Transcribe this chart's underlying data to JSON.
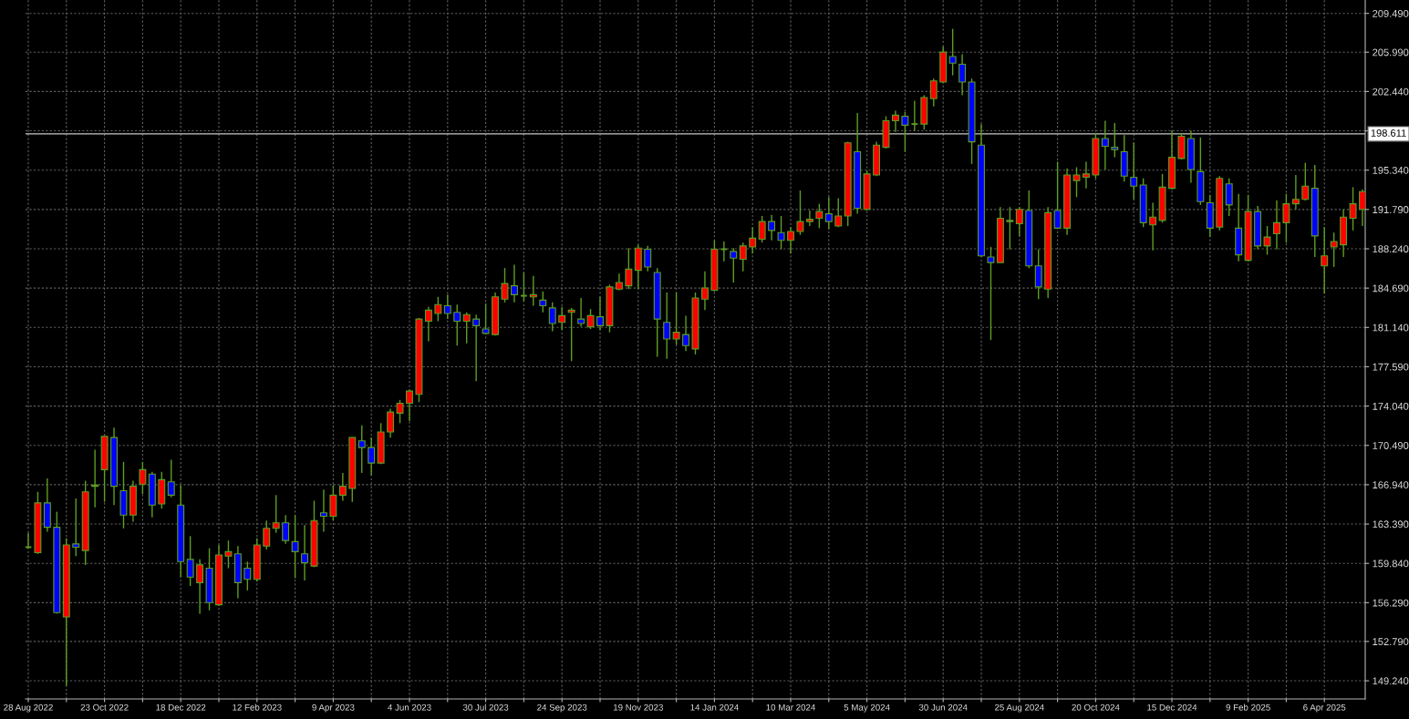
{
  "chart_data": {
    "type": "candlestick",
    "x": [
      "2022-08-28",
      "2022-09-04",
      "2022-09-11",
      "2022-09-18",
      "2022-09-25",
      "2022-10-02",
      "2022-10-09",
      "2022-10-16",
      "2022-10-23",
      "2022-10-30",
      "2022-11-06",
      "2022-11-13",
      "2022-11-20",
      "2022-11-27",
      "2022-12-04",
      "2022-12-11",
      "2022-12-18",
      "2022-12-25",
      "2023-01-01",
      "2023-01-08",
      "2023-01-15",
      "2023-01-22",
      "2023-01-29",
      "2023-02-05",
      "2023-02-12",
      "2023-02-19",
      "2023-02-26",
      "2023-03-05",
      "2023-03-12",
      "2023-03-19",
      "2023-03-26",
      "2023-04-02",
      "2023-04-09",
      "2023-04-16",
      "2023-04-23",
      "2023-04-30",
      "2023-05-07",
      "2023-05-14",
      "2023-05-21",
      "2023-05-28",
      "2023-06-04",
      "2023-06-11",
      "2023-06-18",
      "2023-06-25",
      "2023-07-02",
      "2023-07-09",
      "2023-07-16",
      "2023-07-23",
      "2023-07-30",
      "2023-08-06",
      "2023-08-13",
      "2023-08-20",
      "2023-08-27",
      "2023-09-03",
      "2023-09-10",
      "2023-09-17",
      "2023-09-24",
      "2023-10-01",
      "2023-10-08",
      "2023-10-15",
      "2023-10-22",
      "2023-10-29",
      "2023-11-05",
      "2023-11-12",
      "2023-11-19",
      "2023-11-26",
      "2023-12-03",
      "2023-12-10",
      "2023-12-17",
      "2023-12-24",
      "2023-12-31",
      "2024-01-07",
      "2024-01-14",
      "2024-01-21",
      "2024-01-28",
      "2024-02-04",
      "2024-02-11",
      "2024-02-18",
      "2024-02-25",
      "2024-03-03",
      "2024-03-10",
      "2024-03-17",
      "2024-03-24",
      "2024-03-31",
      "2024-04-07",
      "2024-04-14",
      "2024-04-21",
      "2024-04-28",
      "2024-05-05",
      "2024-05-12",
      "2024-05-19",
      "2024-05-26",
      "2024-06-02",
      "2024-06-09",
      "2024-06-16",
      "2024-06-23",
      "2024-06-30",
      "2024-07-07",
      "2024-07-14",
      "2024-07-21",
      "2024-07-28",
      "2024-08-04",
      "2024-08-11",
      "2024-08-18",
      "2024-08-25",
      "2024-09-01",
      "2024-09-08",
      "2024-09-15",
      "2024-09-22",
      "2024-09-29",
      "2024-10-06",
      "2024-10-13",
      "2024-10-20",
      "2024-10-27",
      "2024-11-03",
      "2024-11-10",
      "2024-11-17",
      "2024-11-24",
      "2024-12-01",
      "2024-12-08",
      "2024-12-15",
      "2024-12-22",
      "2024-12-29",
      "2025-01-05",
      "2025-01-12",
      "2025-01-19",
      "2025-01-26",
      "2025-02-02",
      "2025-02-09",
      "2025-02-16",
      "2025-02-23",
      "2025-03-02",
      "2025-03-09",
      "2025-03-16",
      "2025-03-23",
      "2025-03-30",
      "2025-04-06",
      "2025-04-13",
      "2025-04-20",
      "2025-04-27",
      "2025-05-04"
    ],
    "ohlc": [
      [
        161.3,
        162.6,
        161.2,
        161.3
      ],
      [
        160.8,
        166.3,
        160.7,
        165.3
      ],
      [
        165.3,
        167.5,
        162.7,
        163.1
      ],
      [
        163.1,
        164.5,
        155.3,
        155.4
      ],
      [
        155.0,
        162.1,
        148.8,
        161.5
      ],
      [
        161.6,
        165.7,
        160.5,
        161.3
      ],
      [
        161.0,
        167.3,
        159.7,
        166.3
      ],
      [
        166.9,
        170.1,
        164.9,
        166.8
      ],
      [
        168.3,
        171.3,
        165.4,
        171.3
      ],
      [
        171.2,
        172.1,
        165.1,
        166.8
      ],
      [
        166.4,
        169.0,
        163.0,
        164.2
      ],
      [
        164.2,
        167.3,
        163.6,
        166.8
      ],
      [
        167.0,
        169.0,
        166.1,
        168.3
      ],
      [
        167.9,
        168.1,
        164.0,
        165.1
      ],
      [
        165.2,
        168.1,
        164.8,
        167.4
      ],
      [
        167.2,
        169.2,
        165.8,
        166.0
      ],
      [
        165.1,
        166.9,
        158.6,
        160.0
      ],
      [
        160.2,
        162.3,
        157.8,
        158.6
      ],
      [
        158.1,
        160.2,
        155.3,
        159.7
      ],
      [
        159.4,
        161.2,
        155.6,
        156.3
      ],
      [
        156.1,
        161.5,
        156.0,
        160.6
      ],
      [
        160.5,
        161.9,
        159.4,
        160.9
      ],
      [
        160.7,
        161.4,
        156.7,
        158.1
      ],
      [
        159.4,
        160.0,
        157.4,
        158.4
      ],
      [
        158.4,
        162.1,
        158.2,
        161.5
      ],
      [
        161.4,
        163.7,
        161.1,
        163.0
      ],
      [
        163.0,
        166.0,
        162.6,
        163.5
      ],
      [
        163.5,
        164.2,
        161.6,
        161.9
      ],
      [
        161.8,
        164.2,
        158.5,
        160.9
      ],
      [
        160.7,
        163.3,
        158.3,
        159.9
      ],
      [
        159.6,
        165.5,
        159.5,
        163.7
      ],
      [
        164.4,
        166.5,
        162.7,
        164.1
      ],
      [
        164.1,
        166.9,
        163.7,
        166.0
      ],
      [
        166.0,
        168.0,
        165.5,
        166.8
      ],
      [
        166.6,
        171.2,
        165.4,
        171.2
      ],
      [
        170.9,
        172.3,
        168.0,
        170.3
      ],
      [
        170.3,
        171.2,
        167.8,
        168.9
      ],
      [
        168.9,
        172.5,
        168.8,
        171.7
      ],
      [
        171.7,
        173.8,
        171.2,
        173.5
      ],
      [
        173.4,
        174.6,
        172.5,
        174.3
      ],
      [
        174.3,
        175.5,
        172.7,
        175.4
      ],
      [
        175.1,
        182.0,
        174.4,
        181.9
      ],
      [
        181.7,
        183.0,
        179.9,
        182.7
      ],
      [
        182.4,
        183.9,
        181.7,
        183.2
      ],
      [
        183.1,
        184.1,
        181.9,
        182.4
      ],
      [
        182.5,
        183.2,
        179.5,
        181.7
      ],
      [
        181.7,
        182.5,
        179.7,
        182.3
      ],
      [
        181.9,
        182.3,
        176.3,
        181.3
      ],
      [
        181.0,
        183.3,
        180.5,
        180.6
      ],
      [
        180.5,
        184.3,
        180.4,
        183.9
      ],
      [
        183.7,
        186.5,
        183.4,
        185.1
      ],
      [
        184.9,
        186.8,
        183.4,
        184.1
      ],
      [
        184.0,
        186.1,
        183.5,
        184.0
      ],
      [
        183.9,
        185.8,
        183.1,
        184.1
      ],
      [
        183.6,
        184.4,
        182.5,
        183.1
      ],
      [
        182.9,
        183.4,
        180.8,
        181.5
      ],
      [
        181.6,
        183.0,
        180.9,
        182.2
      ],
      [
        182.5,
        182.9,
        178.1,
        182.7
      ],
      [
        181.9,
        183.8,
        181.2,
        181.5
      ],
      [
        181.2,
        182.8,
        181.0,
        182.2
      ],
      [
        182.1,
        183.9,
        180.9,
        181.3
      ],
      [
        181.3,
        185.0,
        180.7,
        184.8
      ],
      [
        184.6,
        186.0,
        184.5,
        185.2
      ],
      [
        184.9,
        188.3,
        184.6,
        186.4
      ],
      [
        186.3,
        188.6,
        184.6,
        188.3
      ],
      [
        188.2,
        188.5,
        186.2,
        186.6
      ],
      [
        186.1,
        186.5,
        178.5,
        181.9
      ],
      [
        181.6,
        184.3,
        178.3,
        180.1
      ],
      [
        180.1,
        184.3,
        179.6,
        180.7
      ],
      [
        180.5,
        182.2,
        179.0,
        179.5
      ],
      [
        179.2,
        184.3,
        178.7,
        183.8
      ],
      [
        183.7,
        186.2,
        182.7,
        184.7
      ],
      [
        184.5,
        189.0,
        184.4,
        188.2
      ],
      [
        188.2,
        188.9,
        187.1,
        188.2
      ],
      [
        188.0,
        188.3,
        185.2,
        187.4
      ],
      [
        187.3,
        188.8,
        186.2,
        188.5
      ],
      [
        188.4,
        190.2,
        187.8,
        189.2
      ],
      [
        189.1,
        191.2,
        188.8,
        190.7
      ],
      [
        190.7,
        191.3,
        189.0,
        189.9
      ],
      [
        189.7,
        191.2,
        188.2,
        189.0
      ],
      [
        189.0,
        190.2,
        187.8,
        189.8
      ],
      [
        189.8,
        193.5,
        189.5,
        190.7
      ],
      [
        190.7,
        191.7,
        190.3,
        190.9
      ],
      [
        191.0,
        192.3,
        190.1,
        191.6
      ],
      [
        191.4,
        192.9,
        190.0,
        190.7
      ],
      [
        190.3,
        192.8,
        190.2,
        191.2
      ],
      [
        191.2,
        197.9,
        190.3,
        197.8
      ],
      [
        197.0,
        200.5,
        191.4,
        191.9
      ],
      [
        191.8,
        195.3,
        191.7,
        195.0
      ],
      [
        194.9,
        197.9,
        194.8,
        197.6
      ],
      [
        197.4,
        200.2,
        197.3,
        199.8
      ],
      [
        199.8,
        200.7,
        198.8,
        200.3
      ],
      [
        200.2,
        200.6,
        197.0,
        199.4
      ],
      [
        199.5,
        201.6,
        198.9,
        199.5
      ],
      [
        199.5,
        202.1,
        199.0,
        201.9
      ],
      [
        201.8,
        203.6,
        201.1,
        203.4
      ],
      [
        203.3,
        206.5,
        203.2,
        206.0
      ],
      [
        205.6,
        208.1,
        203.9,
        205.0
      ],
      [
        204.9,
        205.8,
        202.1,
        203.3
      ],
      [
        203.3,
        203.6,
        195.9,
        197.9
      ],
      [
        197.6,
        199.5,
        187.5,
        187.6
      ],
      [
        187.5,
        188.4,
        180.0,
        187.0
      ],
      [
        187.0,
        192.0,
        187.0,
        191.0
      ],
      [
        190.8,
        192.0,
        188.2,
        190.7
      ],
      [
        190.5,
        192.0,
        189.4,
        191.8
      ],
      [
        191.7,
        193.5,
        186.5,
        186.7
      ],
      [
        186.7,
        188.2,
        183.7,
        184.8
      ],
      [
        184.6,
        192.0,
        183.8,
        191.5
      ],
      [
        191.7,
        196.1,
        190.1,
        190.1
      ],
      [
        190.1,
        195.5,
        189.5,
        194.9
      ],
      [
        194.4,
        195.6,
        192.9,
        194.9
      ],
      [
        194.7,
        196.1,
        193.7,
        195.0
      ],
      [
        194.9,
        198.7,
        194.6,
        198.2
      ],
      [
        198.2,
        199.8,
        195.4,
        197.5
      ],
      [
        197.4,
        199.6,
        196.5,
        197.2
      ],
      [
        197.0,
        198.5,
        194.3,
        194.8
      ],
      [
        194.7,
        197.8,
        192.7,
        193.9
      ],
      [
        194.0,
        194.6,
        190.2,
        190.6
      ],
      [
        190.4,
        192.4,
        188.1,
        191.1
      ],
      [
        190.8,
        195.0,
        190.6,
        193.8
      ],
      [
        193.7,
        198.9,
        193.6,
        196.5
      ],
      [
        196.4,
        198.7,
        196.3,
        198.4
      ],
      [
        198.2,
        198.9,
        194.2,
        195.4
      ],
      [
        195.2,
        198.3,
        192.2,
        192.5
      ],
      [
        192.4,
        193.1,
        189.3,
        190.1
      ],
      [
        190.2,
        194.8,
        189.9,
        194.6
      ],
      [
        194.1,
        194.6,
        191.2,
        192.2
      ],
      [
        190.1,
        193.2,
        187.1,
        187.7
      ],
      [
        187.2,
        193.1,
        187.1,
        191.6
      ],
      [
        191.6,
        192.1,
        188.2,
        188.5
      ],
      [
        188.5,
        190.3,
        187.7,
        189.3
      ],
      [
        189.6,
        192.6,
        188.2,
        190.6
      ],
      [
        190.6,
        193.2,
        188.8,
        192.3
      ],
      [
        192.3,
        194.9,
        191.8,
        192.7
      ],
      [
        192.7,
        196.0,
        192.6,
        193.9
      ],
      [
        193.7,
        195.8,
        187.5,
        189.4
      ],
      [
        186.7,
        190.2,
        184.2,
        187.6
      ],
      [
        188.4,
        189.7,
        186.6,
        188.9
      ],
      [
        188.6,
        191.8,
        187.5,
        191.1
      ],
      [
        191.0,
        193.8,
        189.9,
        192.3
      ],
      [
        191.8,
        193.6,
        190.3,
        193.4
      ]
    ],
    "colors": [
      "#5d9e23",
      "#ff0000",
      "#0000ff",
      "#0000ff",
      "#ff0000",
      "#0000ff",
      "#ff0000",
      "#0000ff",
      "#ff0000",
      "#0000ff",
      "#0000ff",
      "#ff0000",
      "#ff0000",
      "#0000ff",
      "#ff0000",
      "#0000ff",
      "#0000ff",
      "#0000ff",
      "#ff0000",
      "#0000ff",
      "#ff0000",
      "#ff0000",
      "#0000ff",
      "#0000ff",
      "#ff0000",
      "#ff0000",
      "#ff0000",
      "#0000ff",
      "#0000ff",
      "#0000ff",
      "#ff0000",
      "#0000ff",
      "#ff0000",
      "#ff0000",
      "#ff0000",
      "#0000ff",
      "#0000ff",
      "#ff0000",
      "#ff0000",
      "#ff0000",
      "#ff0000",
      "#ff0000",
      "#ff0000",
      "#ff0000",
      "#0000ff",
      "#0000ff",
      "#ff0000",
      "#0000ff",
      "#0000ff",
      "#ff0000",
      "#ff0000",
      "#0000ff",
      "#5d9e23",
      "#ff0000",
      "#0000ff",
      "#0000ff",
      "#ff0000",
      "#ff0000",
      "#0000ff",
      "#ff0000",
      "#0000ff",
      "#ff0000",
      "#ff0000",
      "#ff0000",
      "#ff0000",
      "#0000ff",
      "#0000ff",
      "#0000ff",
      "#ff0000",
      "#0000ff",
      "#ff0000",
      "#ff0000",
      "#ff0000",
      "#5d9e23",
      "#0000ff",
      "#ff0000",
      "#ff0000",
      "#ff0000",
      "#0000ff",
      "#0000ff",
      "#ff0000",
      "#ff0000",
      "#ff0000",
      "#ff0000",
      "#0000ff",
      "#ff0000",
      "#ff0000",
      "#0000ff",
      "#ff0000",
      "#ff0000",
      "#ff0000",
      "#ff0000",
      "#0000ff",
      "#5d9e23",
      "#ff0000",
      "#ff0000",
      "#ff0000",
      "#0000ff",
      "#0000ff",
      "#0000ff",
      "#0000ff",
      "#0000ff",
      "#ff0000",
      "#0000ff",
      "#ff0000",
      "#0000ff",
      "#0000ff",
      "#ff0000",
      "#0000ff",
      "#ff0000",
      "#ff0000",
      "#ff0000",
      "#ff0000",
      "#0000ff",
      "#0000ff",
      "#0000ff",
      "#0000ff",
      "#0000ff",
      "#ff0000",
      "#ff0000",
      "#ff0000",
      "#ff0000",
      "#0000ff",
      "#0000ff",
      "#0000ff",
      "#ff0000",
      "#0000ff",
      "#0000ff",
      "#ff0000",
      "#0000ff",
      "#ff0000",
      "#ff0000",
      "#ff0000",
      "#ff0000",
      "#ff0000",
      "#0000ff",
      "#ff0000",
      "#ff0000",
      "#ff0000",
      "#ff0000",
      "#ff0000"
    ],
    "color": "#5d9e23",
    "xlim": [
      "2022-08-26",
      "2025-05-06"
    ],
    "xticks": [
      {
        "value": "2022-08-28",
        "label": "28 Aug 2022"
      },
      {
        "value": "2022-09-25",
        "label": null
      },
      {
        "value": "2022-10-23",
        "label": "23 Oct 2022"
      },
      {
        "value": "2022-11-20",
        "label": null
      },
      {
        "value": "2022-12-18",
        "label": "18 Dec 2022"
      },
      {
        "value": "2023-01-15",
        "label": null
      },
      {
        "value": "2023-02-12",
        "label": "12 Feb 2023"
      },
      {
        "value": "2023-03-12",
        "label": null
      },
      {
        "value": "2023-04-09",
        "label": "9 Apr 2023"
      },
      {
        "value": "2023-05-07",
        "label": null
      },
      {
        "value": "2023-06-04",
        "label": "4 Jun 2023"
      },
      {
        "value": "2023-07-02",
        "label": null
      },
      {
        "value": "2023-07-30",
        "label": "30 Jul 2023"
      },
      {
        "value": "2023-08-27",
        "label": null
      },
      {
        "value": "2023-09-24",
        "label": "24 Sep 2023"
      },
      {
        "value": "2023-10-22",
        "label": null
      },
      {
        "value": "2023-11-19",
        "label": "19 Nov 2023"
      },
      {
        "value": "2023-12-17",
        "label": null
      },
      {
        "value": "2024-01-14",
        "label": "14 Jan 2024"
      },
      {
        "value": "2024-02-11",
        "label": null
      },
      {
        "value": "2024-03-10",
        "label": "10 Mar 2024"
      },
      {
        "value": "2024-04-07",
        "label": null
      },
      {
        "value": "2024-05-05",
        "label": "5 May 2024"
      },
      {
        "value": "2024-06-02",
        "label": null
      },
      {
        "value": "2024-06-30",
        "label": "30 Jun 2024"
      },
      {
        "value": "2024-07-28",
        "label": null
      },
      {
        "value": "2024-08-25",
        "label": "25 Aug 2024"
      },
      {
        "value": "2024-09-22",
        "label": null
      },
      {
        "value": "2024-10-20",
        "label": "20 Oct 2024"
      },
      {
        "value": "2024-11-17",
        "label": null
      },
      {
        "value": "2024-12-15",
        "label": "15 Dec 2024"
      },
      {
        "value": "2025-01-12",
        "label": null
      },
      {
        "value": "2025-02-09",
        "label": "9 Feb 2025"
      },
      {
        "value": "2025-03-09",
        "label": null
      },
      {
        "value": "2025-04-06",
        "label": "6 Apr 2025"
      }
    ],
    "ylim": [
      147.6,
      210.7
    ],
    "yticks": [
      {
        "value": 209.49,
        "label": "209.490"
      },
      {
        "value": 205.99,
        "label": "205.990"
      },
      {
        "value": 202.44,
        "label": "202.440"
      },
      {
        "value": 198.89,
        "label": null
      },
      {
        "value": 195.34,
        "label": "195.340"
      },
      {
        "value": 191.79,
        "label": "191.790"
      },
      {
        "value": 188.24,
        "label": "188.240"
      },
      {
        "value": 184.69,
        "label": "184.690"
      },
      {
        "value": 181.14,
        "label": "181.140"
      },
      {
        "value": 177.59,
        "label": "177.590"
      },
      {
        "value": 174.04,
        "label": "174.040"
      },
      {
        "value": 170.49,
        "label": "170.490"
      },
      {
        "value": 166.94,
        "label": "166.940"
      },
      {
        "value": 163.39,
        "label": "163.390"
      },
      {
        "value": 159.84,
        "label": "159.840"
      },
      {
        "value": 156.29,
        "label": "156.290"
      },
      {
        "value": 152.79,
        "label": "152.790"
      },
      {
        "value": 149.24,
        "label": "149.240"
      }
    ],
    "grid": true,
    "ref_lines": [
      {
        "axis": "y",
        "value": 198.611,
        "label": "198.611",
        "color": "#c8c8c8",
        "line_style": "solid"
      }
    ]
  }
}
